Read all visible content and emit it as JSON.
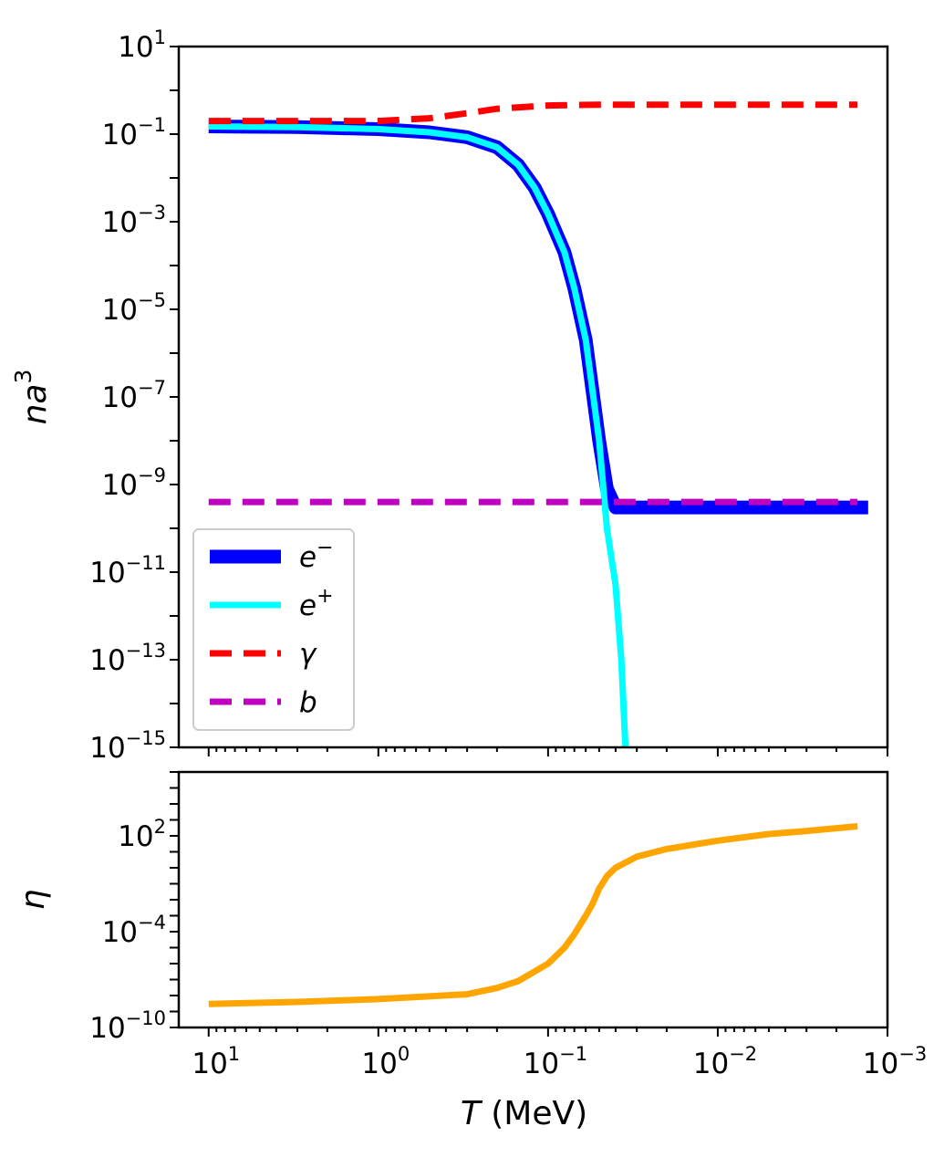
{
  "chart_data": [
    {
      "type": "line",
      "panel": "top",
      "ylabel": "na",
      "ylabel_sup": "3",
      "xscale": "log",
      "yscale": "log",
      "x_inverted": true,
      "xlim": [
        15,
        0.001
      ],
      "ylim": [
        1e-15,
        10
      ],
      "yticks": [
        {
          "base": "10",
          "exp": "1",
          "value": 10
        },
        {
          "base": "10",
          "exp": "−1",
          "value": 0.1
        },
        {
          "base": "10",
          "exp": "−3",
          "value": 0.001
        },
        {
          "base": "10",
          "exp": "−5",
          "value": 1e-05
        },
        {
          "base": "10",
          "exp": "−7",
          "value": 1e-07
        },
        {
          "base": "10",
          "exp": "−9",
          "value": 1e-09
        },
        {
          "base": "10",
          "exp": "−11",
          "value": 1e-11
        },
        {
          "base": "10",
          "exp": "−13",
          "value": 1e-13
        },
        {
          "base": "10",
          "exp": "−15",
          "value": 1e-15
        }
      ],
      "legend_position": "lower-left",
      "series": [
        {
          "name": "e",
          "name_sup": "−",
          "color": "#0000ff",
          "style": "solid",
          "weight": "thick",
          "points": [
            [
              10,
              0.15
            ],
            [
              3,
              0.145
            ],
            [
              1,
              0.13
            ],
            [
              0.5,
              0.11
            ],
            [
              0.3,
              0.085
            ],
            [
              0.2,
              0.05
            ],
            [
              0.15,
              0.02
            ],
            [
              0.12,
              0.006
            ],
            [
              0.1,
              0.0015
            ],
            [
              0.08,
              0.0002
            ],
            [
              0.07,
              3e-05
            ],
            [
              0.06,
              2e-06
            ],
            [
              0.05,
              1e-08
            ],
            [
              0.045,
              8e-10
            ],
            [
              0.04,
              3e-10
            ],
            [
              0.0013,
              3e-10
            ]
          ]
        },
        {
          "name": "e",
          "name_sup": "+",
          "color": "#00ffff",
          "style": "solid",
          "weight": "medium",
          "points": [
            [
              10,
              0.15
            ],
            [
              3,
              0.145
            ],
            [
              1,
              0.13
            ],
            [
              0.5,
              0.11
            ],
            [
              0.3,
              0.085
            ],
            [
              0.2,
              0.05
            ],
            [
              0.15,
              0.02
            ],
            [
              0.12,
              0.006
            ],
            [
              0.1,
              0.0015
            ],
            [
              0.08,
              0.0002
            ],
            [
              0.07,
              3e-05
            ],
            [
              0.06,
              2e-06
            ],
            [
              0.05,
              1e-08
            ],
            [
              0.045,
              1e-10
            ],
            [
              0.04,
              5e-12
            ],
            [
              0.037,
              1e-13
            ],
            [
              0.035,
              1e-15
            ]
          ]
        },
        {
          "name": "γ",
          "color": "#ff0000",
          "style": "dashed",
          "weight": "medium",
          "points": [
            [
              10,
              0.2
            ],
            [
              1,
              0.2
            ],
            [
              0.5,
              0.23
            ],
            [
              0.3,
              0.3
            ],
            [
              0.2,
              0.38
            ],
            [
              0.1,
              0.45
            ],
            [
              0.05,
              0.47
            ],
            [
              0.0015,
              0.47
            ]
          ]
        },
        {
          "name": "b",
          "color": "#c000c0",
          "style": "dashed",
          "weight": "medium",
          "points": [
            [
              10,
              4e-10
            ],
            [
              0.0015,
              4e-10
            ]
          ]
        }
      ]
    },
    {
      "type": "line",
      "panel": "bottom",
      "ylabel": "η",
      "xlabel_italic": "T",
      "xlabel_rest": " (MeV)",
      "xscale": "log",
      "yscale": "log",
      "x_inverted": true,
      "xlim": [
        15,
        0.001
      ],
      "ylim": [
        1e-10,
        1000000
      ],
      "xticks": [
        {
          "base": "10",
          "exp": "1",
          "value": 10
        },
        {
          "base": "10",
          "exp": "0",
          "value": 1
        },
        {
          "base": "10",
          "exp": "−1",
          "value": 0.1
        },
        {
          "base": "10",
          "exp": "−2",
          "value": 0.01
        },
        {
          "base": "10",
          "exp": "−3",
          "value": 0.001
        }
      ],
      "yticks": [
        {
          "base": "10",
          "exp": "2",
          "value": 100
        },
        {
          "base": "10",
          "exp": "−4",
          "value": 0.0001
        },
        {
          "base": "10",
          "exp": "−10",
          "value": 1e-10
        }
      ],
      "series": [
        {
          "name": "",
          "color": "#ffa500",
          "style": "solid",
          "weight": "medium",
          "points": [
            [
              10,
              3e-09
            ],
            [
              3,
              4e-09
            ],
            [
              1,
              6e-09
            ],
            [
              0.3,
              1.2e-08
            ],
            [
              0.2,
              3e-08
            ],
            [
              0.15,
              8e-08
            ],
            [
              0.1,
              1e-06
            ],
            [
              0.08,
              1e-05
            ],
            [
              0.07,
              7e-05
            ],
            [
              0.06,
              0.001
            ],
            [
              0.055,
              0.005
            ],
            [
              0.05,
              0.05
            ],
            [
              0.045,
              0.3
            ],
            [
              0.04,
              1
            ],
            [
              0.03,
              5
            ],
            [
              0.02,
              15
            ],
            [
              0.01,
              50
            ],
            [
              0.005,
              130
            ],
            [
              0.003,
              200
            ],
            [
              0.0015,
              400
            ]
          ]
        }
      ]
    }
  ]
}
